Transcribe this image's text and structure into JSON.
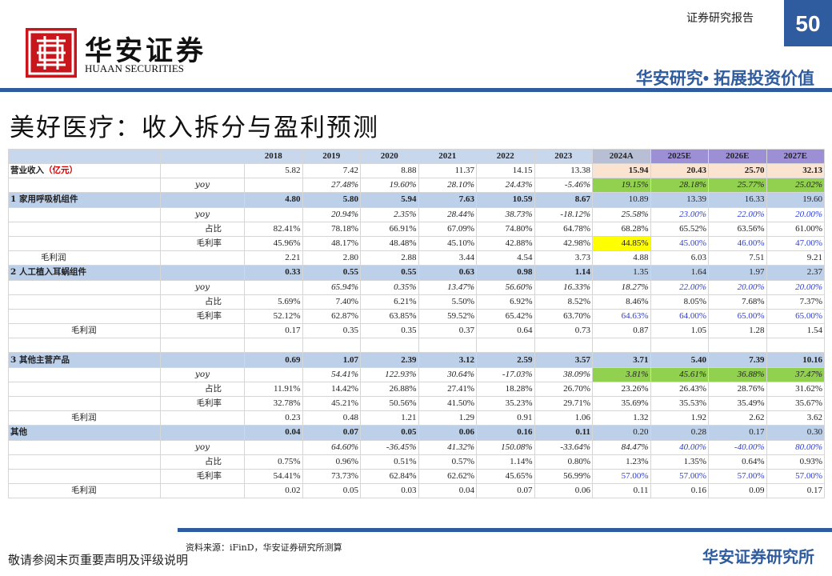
{
  "header": {
    "brand": "华安证券",
    "brand_en": "HUAAN SECURITIES",
    "report_type": "证券研究报告",
    "page_number": "50",
    "slogan": "华安研究• 拓展投资价值"
  },
  "title": "美好医疗：收入拆分与盈利预测",
  "table": {
    "columns": [
      "2018",
      "2019",
      "2020",
      "2021",
      "2022",
      "2023",
      "2024A",
      "2025E",
      "2026E",
      "2027E"
    ],
    "rows": [
      {
        "label": "营业收入",
        "unit": "（亿元）",
        "cells": [
          "5.82",
          "7.42",
          "8.88",
          "11.37",
          "14.15",
          "13.38",
          "15.94",
          "20.43",
          "25.70",
          "32.13"
        ]
      },
      {
        "label": "yoy",
        "cells": [
          null,
          "27.48%",
          "19.60%",
          "28.10%",
          "24.43%",
          "-5.46%",
          "19.15%",
          "28.18%",
          "25.77%",
          "25.02%"
        ]
      },
      {
        "label": "1 家用呼吸机组件",
        "cells": [
          "4.80",
          "5.80",
          "5.94",
          "7.63",
          "10.59",
          "8.67",
          "10.89",
          "13.39",
          "16.33",
          "19.60"
        ]
      },
      {
        "label": "yoy",
        "cells": [
          null,
          "20.94%",
          "2.35%",
          "28.44%",
          "38.73%",
          "-18.12%",
          "25.58%",
          "23.00%",
          "22.00%",
          "20.00%"
        ]
      },
      {
        "label": "占比",
        "cells": [
          "82.41%",
          "78.18%",
          "66.91%",
          "67.09%",
          "74.80%",
          "64.78%",
          "68.28%",
          "65.52%",
          "63.56%",
          "61.00%"
        ]
      },
      {
        "label": "毛利率",
        "cells": [
          "45.96%",
          "48.17%",
          "48.48%",
          "45.10%",
          "42.88%",
          "42.98%",
          "44.85%",
          "45.00%",
          "46.00%",
          "47.00%"
        ]
      },
      {
        "label": "毛利润",
        "cells": [
          "2.21",
          "2.80",
          "2.88",
          "3.44",
          "4.54",
          "3.73",
          "4.88",
          "6.03",
          "7.51",
          "9.21"
        ]
      },
      {
        "label": "2 人工植入耳蜗组件",
        "cells": [
          "0.33",
          "0.55",
          "0.55",
          "0.63",
          "0.98",
          "1.14",
          "1.35",
          "1.64",
          "1.97",
          "2.37"
        ]
      },
      {
        "label": "yoy",
        "cells": [
          null,
          "65.94%",
          "0.35%",
          "13.47%",
          "56.60%",
          "16.33%",
          "18.27%",
          "22.00%",
          "20.00%",
          "20.00%"
        ]
      },
      {
        "label": "占比",
        "cells": [
          "5.69%",
          "7.40%",
          "6.21%",
          "5.50%",
          "6.92%",
          "8.52%",
          "8.46%",
          "8.05%",
          "7.68%",
          "7.37%"
        ]
      },
      {
        "label": "毛利率",
        "cells": [
          "52.12%",
          "62.87%",
          "63.85%",
          "59.52%",
          "65.42%",
          "63.70%",
          "64.63%",
          "64.00%",
          "65.00%",
          "65.00%"
        ]
      },
      {
        "label": "毛利润",
        "cells": [
          "0.17",
          "0.35",
          "0.35",
          "0.37",
          "0.64",
          "0.73",
          "0.87",
          "1.05",
          "1.28",
          "1.54"
        ]
      },
      {
        "cells": [
          null,
          null,
          null,
          null,
          null,
          null,
          null,
          null,
          null,
          null
        ]
      },
      {
        "label": "3 其他主营产品",
        "cells": [
          "0.69",
          "1.07",
          "2.39",
          "3.12",
          "2.59",
          "3.57",
          "3.71",
          "5.40",
          "7.39",
          "10.16"
        ]
      },
      {
        "label": "yoy",
        "cells": [
          null,
          "54.41%",
          "122.93%",
          "30.64%",
          "-17.03%",
          "38.09%",
          "3.81%",
          "45.61%",
          "36.88%",
          "37.47%"
        ]
      },
      {
        "label": "占比",
        "cells": [
          "11.91%",
          "14.42%",
          "26.88%",
          "27.41%",
          "18.28%",
          "26.70%",
          "23.26%",
          "26.43%",
          "28.76%",
          "31.62%"
        ]
      },
      {
        "label": "毛利率",
        "cells": [
          "32.78%",
          "45.21%",
          "50.56%",
          "41.50%",
          "35.23%",
          "29.71%",
          "35.69%",
          "35.53%",
          "35.49%",
          "35.67%"
        ]
      },
      {
        "label": "毛利润",
        "cells": [
          "0.23",
          "0.48",
          "1.21",
          "1.29",
          "0.91",
          "1.06",
          "1.32",
          "1.92",
          "2.62",
          "3.62"
        ]
      },
      {
        "label": "其他",
        "cells": [
          "0.04",
          "0.07",
          "0.05",
          "0.06",
          "0.16",
          "0.11",
          "0.20",
          "0.28",
          "0.17",
          "0.30"
        ]
      },
      {
        "label": "yoy",
        "cells": [
          null,
          "64.60%",
          "-36.45%",
          "41.32%",
          "150.08%",
          "-33.64%",
          "84.47%",
          "40.00%",
          "-40.00%",
          "80.00%"
        ]
      },
      {
        "label": "占比",
        "cells": [
          "0.75%",
          "0.96%",
          "0.51%",
          "0.57%",
          "1.14%",
          "0.80%",
          "1.23%",
          "1.35%",
          "0.64%",
          "0.93%"
        ]
      },
      {
        "label": "毛利率",
        "cells": [
          "54.41%",
          "73.73%",
          "62.84%",
          "62.62%",
          "45.65%",
          "56.99%",
          "57.00%",
          "57.00%",
          "57.00%",
          "57.00%"
        ]
      },
      {
        "label": "毛利润",
        "cells": [
          "0.02",
          "0.05",
          "0.03",
          "0.04",
          "0.07",
          "0.06",
          "0.11",
          "0.16",
          "0.09",
          "0.17"
        ]
      }
    ]
  },
  "source": "资料来源：iFinD，华安证券研究所测算",
  "footer": {
    "disclaimer": "敬请参阅末页重要声明及评级说明",
    "institution": "华安证券研究所"
  }
}
